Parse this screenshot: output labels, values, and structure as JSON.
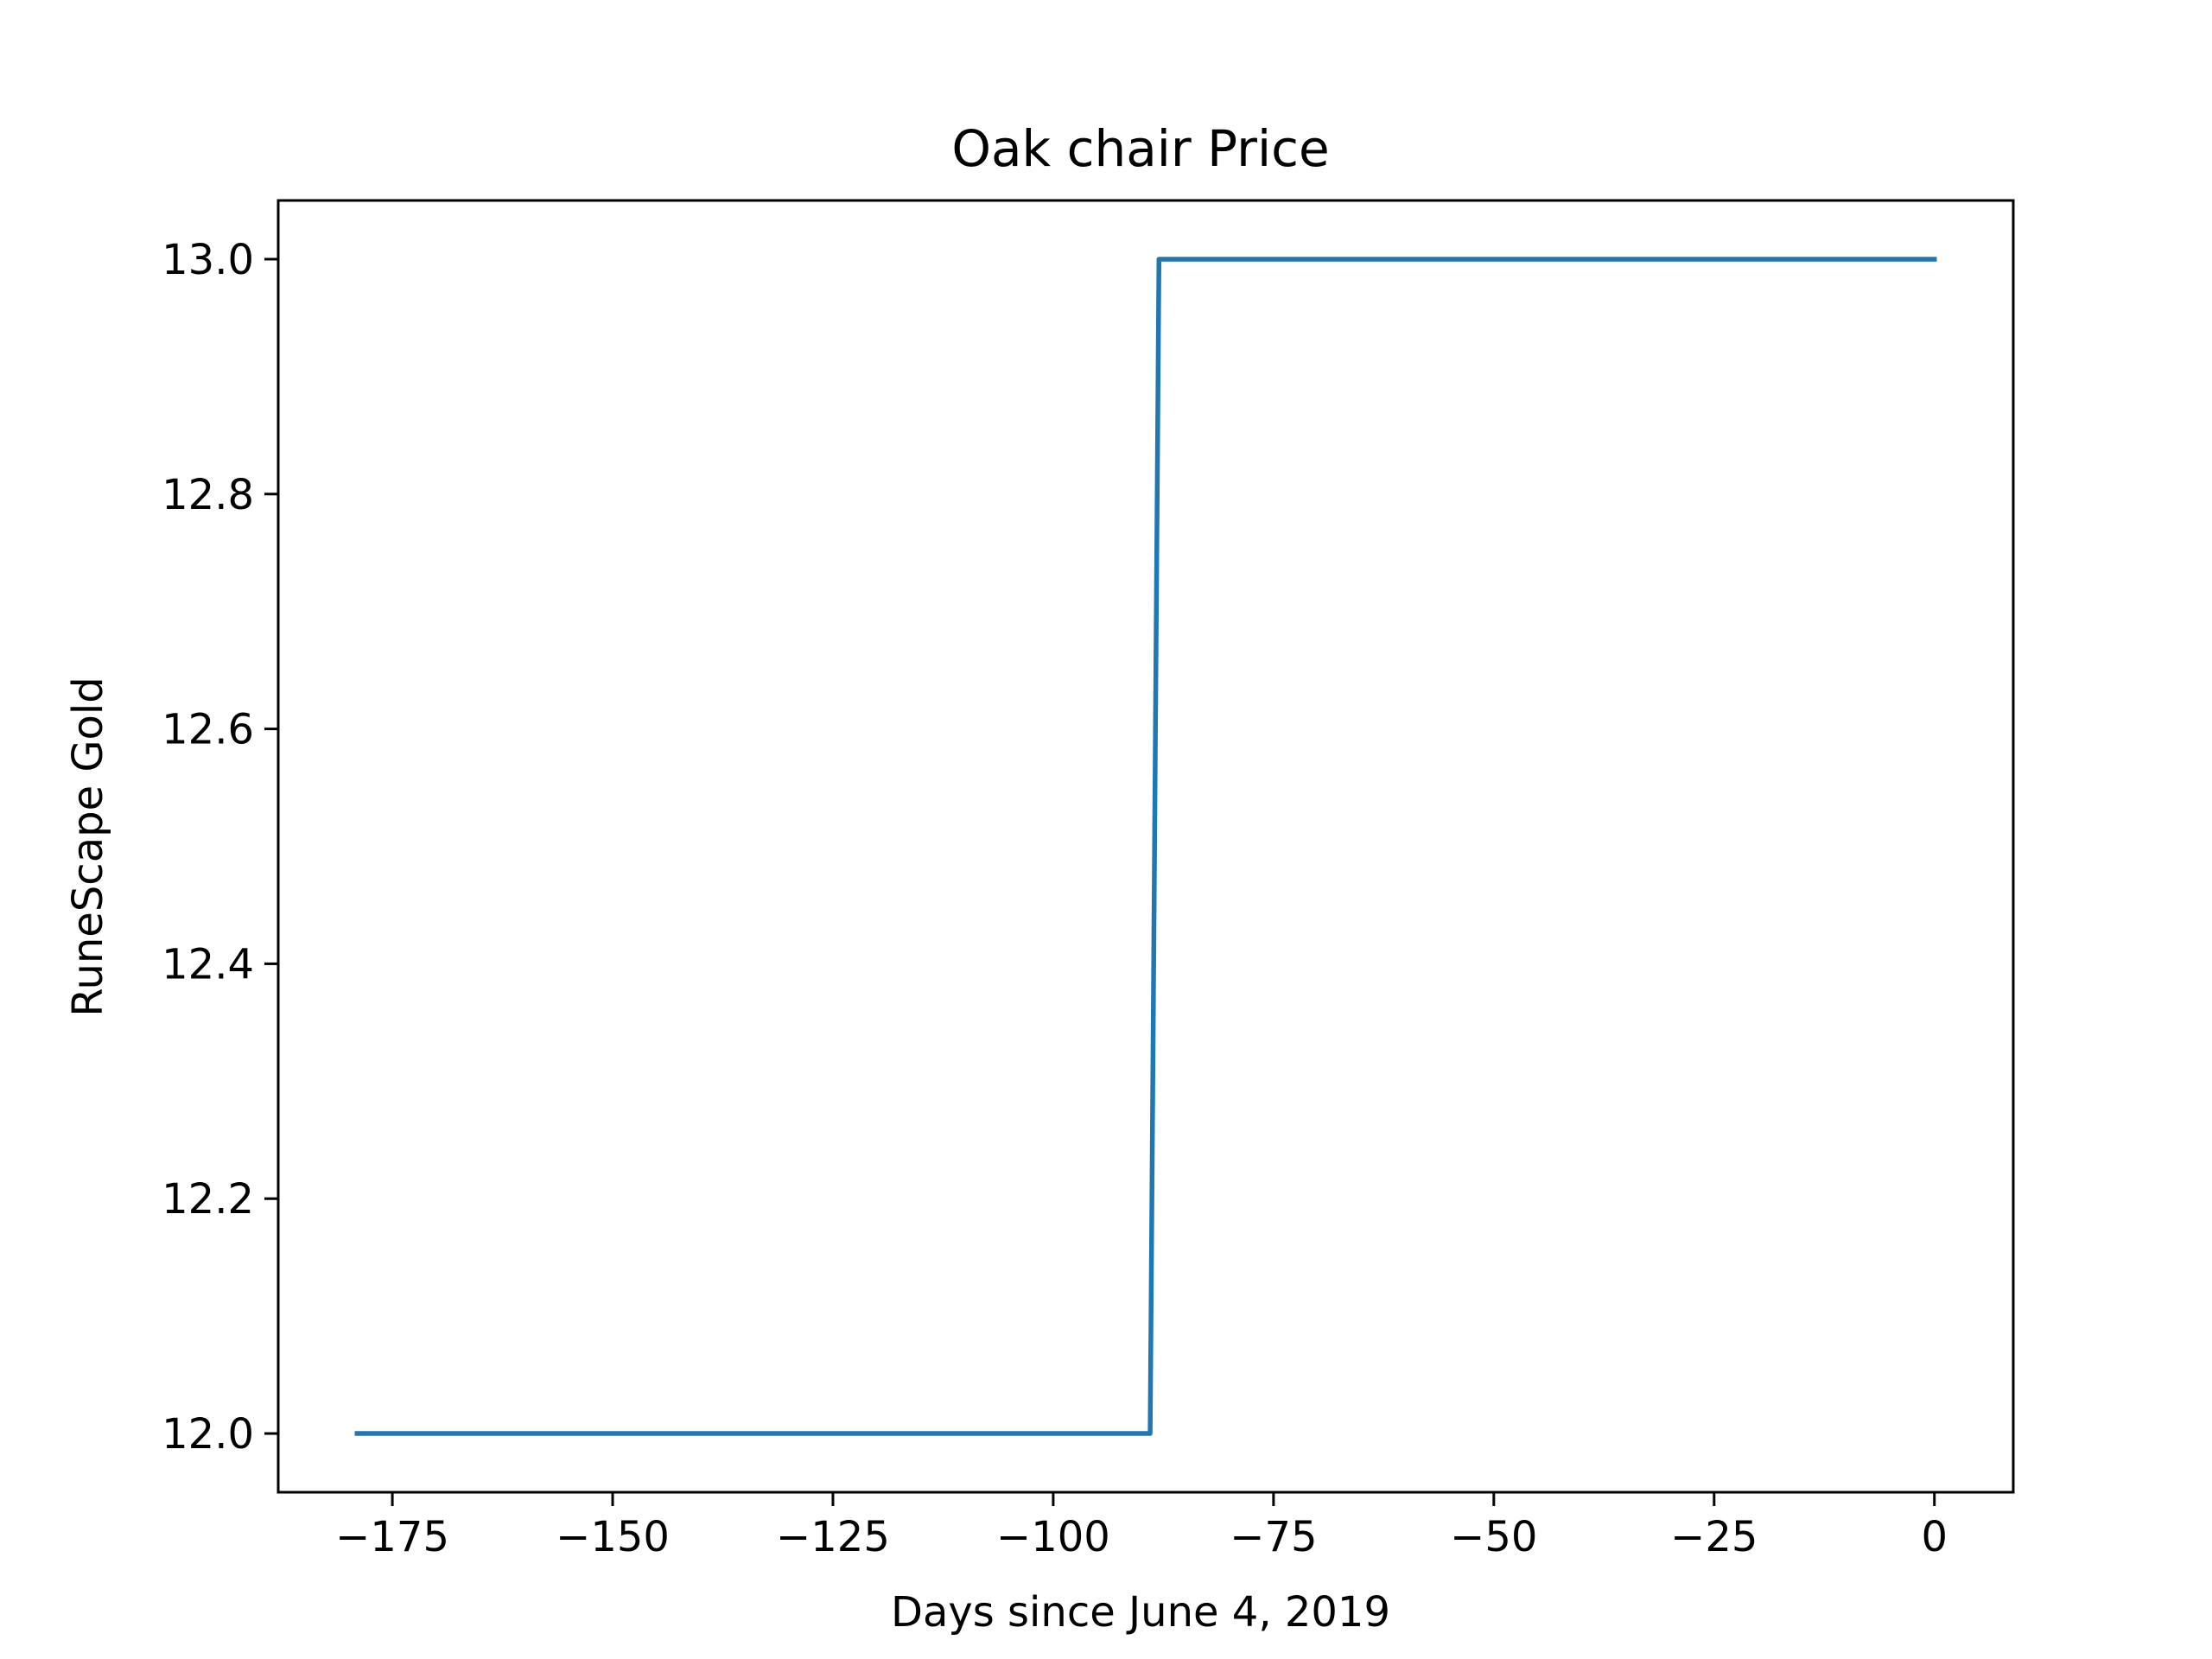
{
  "chart_data": {
    "type": "line",
    "title": "Oak chair Price",
    "xlabel": "Days since June 4, 2019",
    "ylabel": "RuneScape Gold",
    "xlim": [
      -187.95,
      8.95
    ],
    "ylim": [
      11.95,
      13.05
    ],
    "x_ticks": [
      -175,
      -150,
      -125,
      -100,
      -75,
      -50,
      -25,
      0
    ],
    "x_tick_labels": [
      "−175",
      "−150",
      "−125",
      "−100",
      "−75",
      "−50",
      "−25",
      "0"
    ],
    "y_ticks": [
      12.0,
      12.2,
      12.4,
      12.6,
      12.8,
      13.0
    ],
    "y_tick_labels": [
      "12.0",
      "12.2",
      "12.4",
      "12.6",
      "12.8",
      "13.0"
    ],
    "grid": false,
    "series": [
      {
        "name": "Oak chair",
        "color": "#1f77b4",
        "x": [
          -179,
          -89,
          -88,
          0
        ],
        "y": [
          12.0,
          12.0,
          13.0,
          13.0
        ]
      }
    ]
  }
}
